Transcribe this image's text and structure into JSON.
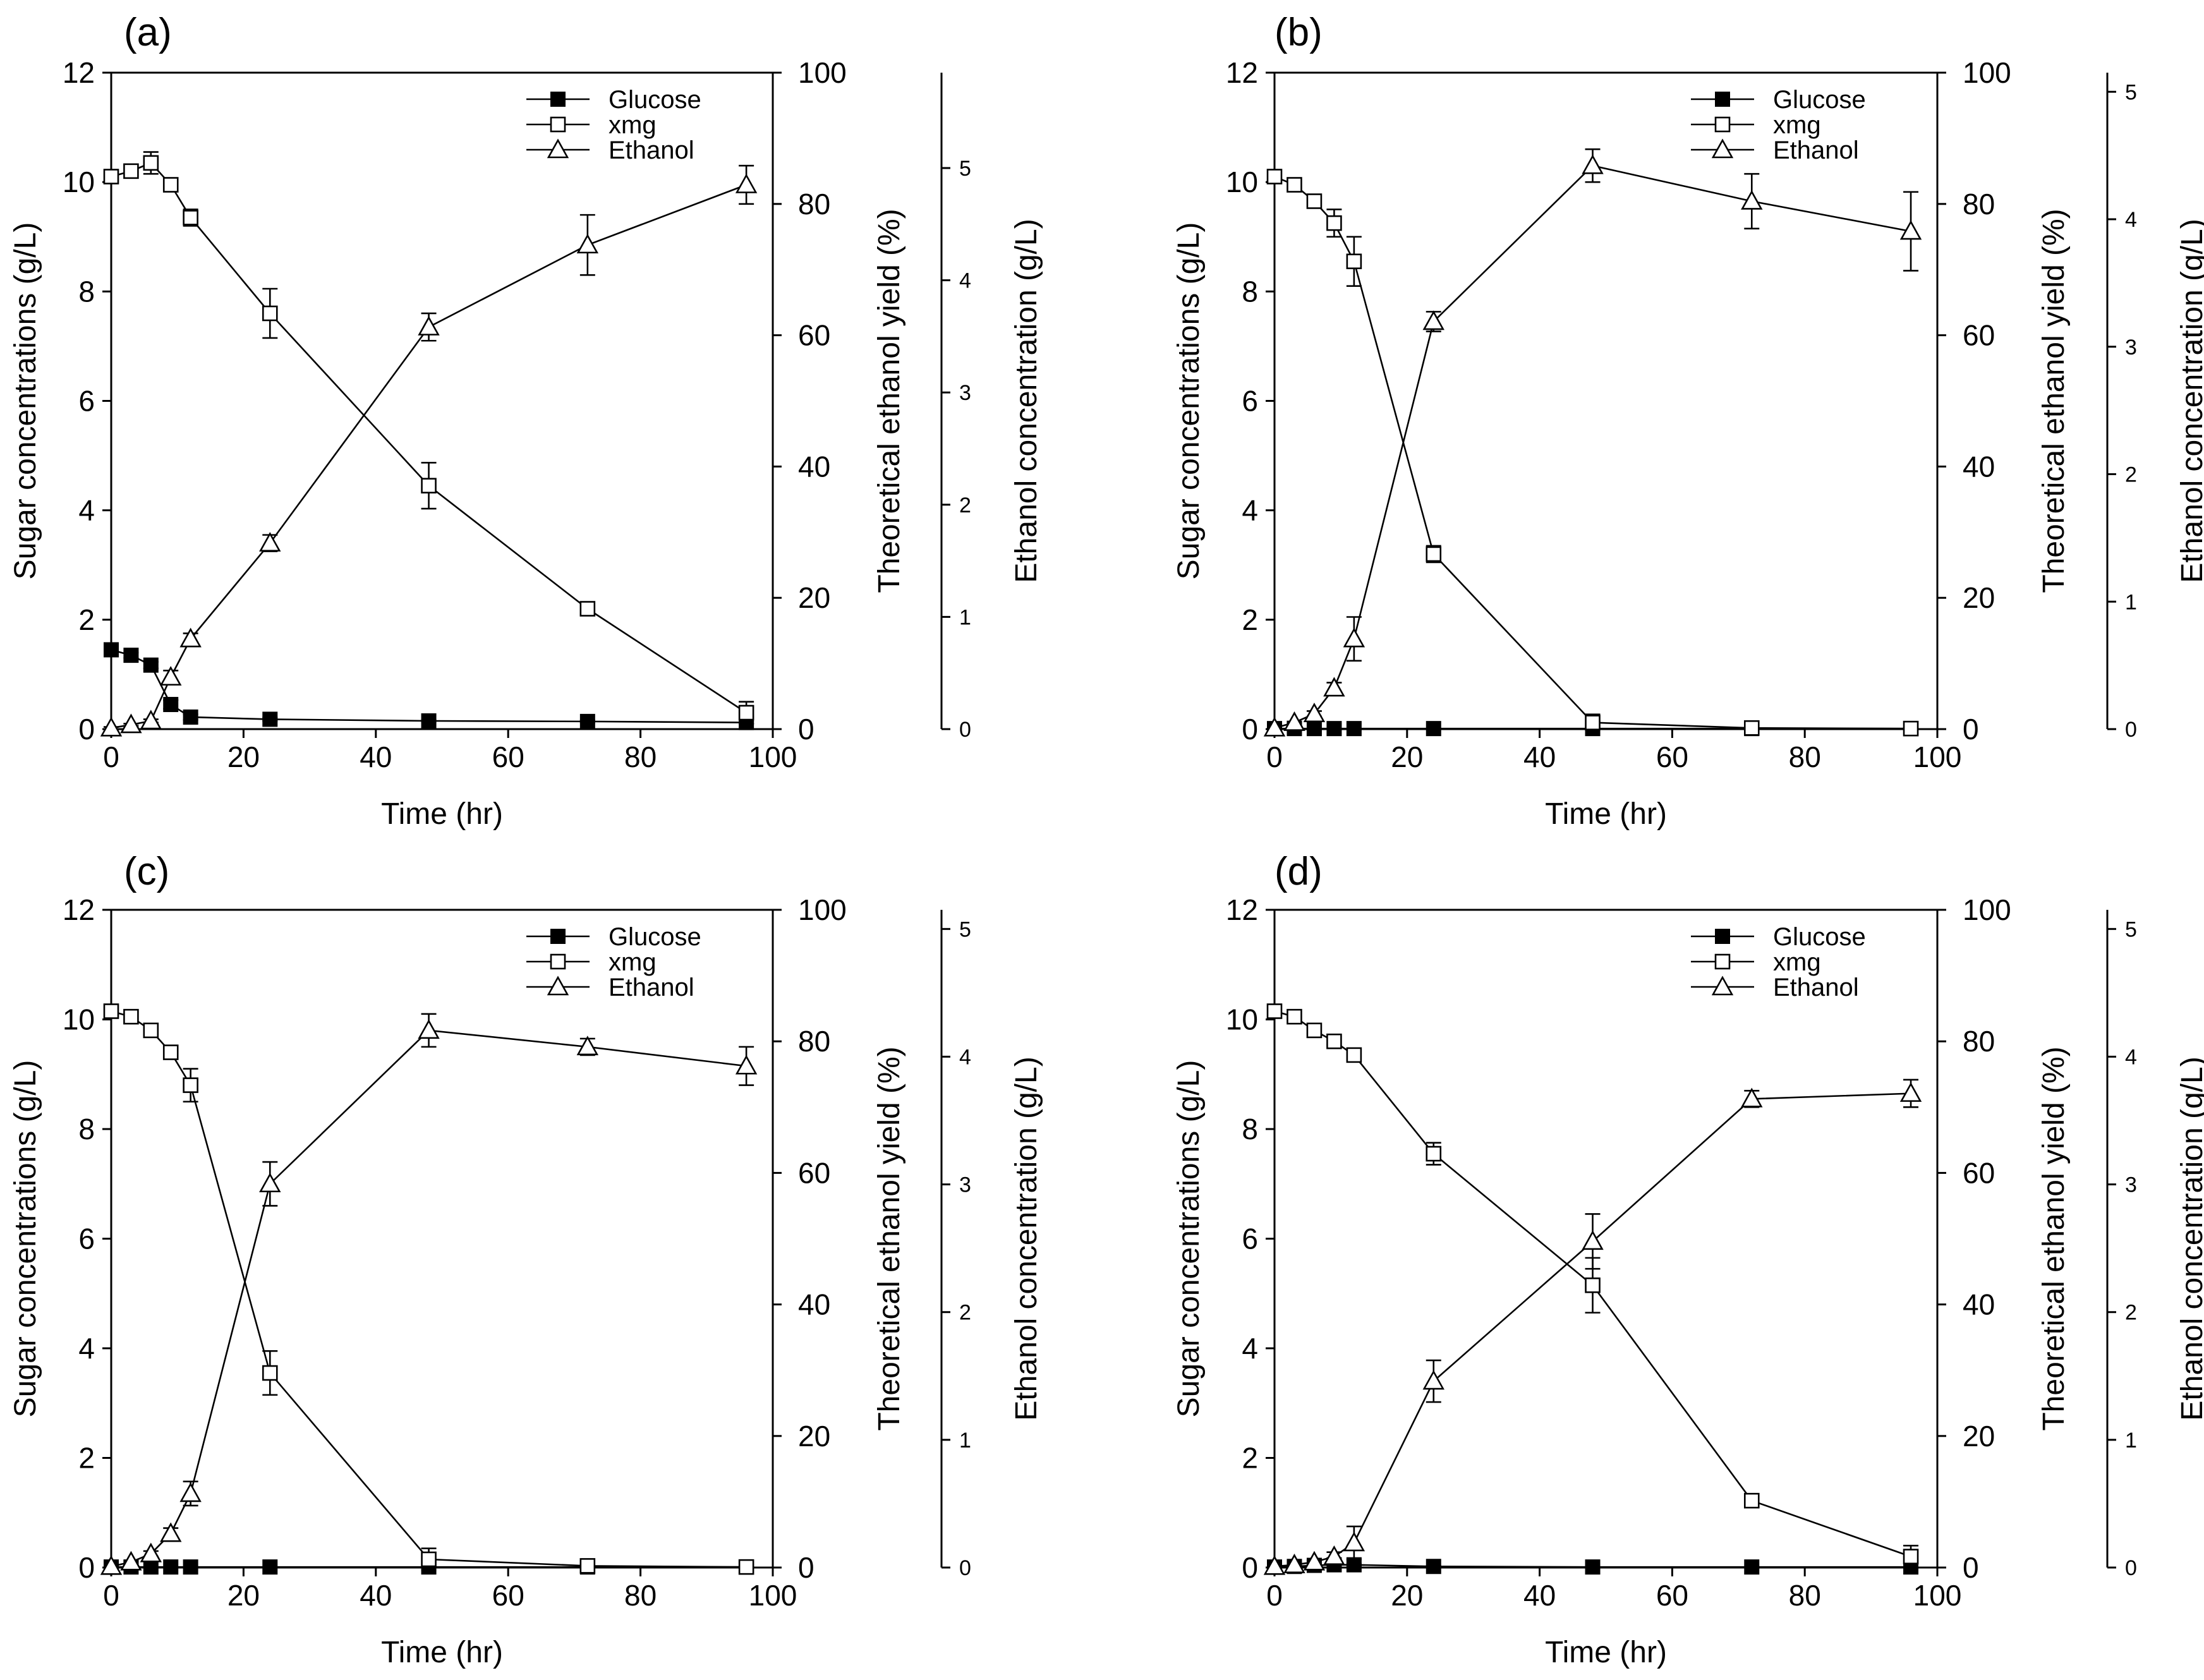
{
  "chart_data": [
    {
      "type": "line",
      "panel_label": "(a)",
      "xlabel": "Time (hr)",
      "ylabel": "Sugar concentrations (g/L)",
      "y2label": "Theoretical ethanol yield (%)",
      "y3label": "Ethanol concentration (g/L)",
      "xlim": [
        0,
        100
      ],
      "ylim": [
        0,
        12
      ],
      "y2lim": [
        0,
        100
      ],
      "y3lim": [
        0,
        5.85
      ],
      "xticks": [
        "0",
        "20",
        "40",
        "60",
        "80",
        "100"
      ],
      "yticks": [
        "0",
        "2",
        "4",
        "6",
        "8",
        "10",
        "12"
      ],
      "y2ticks": [
        "0",
        "20",
        "40",
        "60",
        "80",
        "100"
      ],
      "y3ticks": [
        "0",
        "1",
        "2",
        "3",
        "4",
        "5"
      ],
      "legend_position": "top-right",
      "series": [
        {
          "name": "Glucose",
          "marker": "filled-square",
          "x": [
            0,
            3,
            6,
            9,
            12,
            24,
            48,
            72,
            96
          ],
          "y": [
            1.45,
            1.35,
            1.17,
            0.45,
            0.22,
            0.18,
            0.15,
            0.14,
            0.12
          ],
          "err": [
            0.06,
            0.05,
            0.06,
            0.08,
            0.05,
            0.03,
            0.02,
            0.02,
            0.02
          ]
        },
        {
          "name": "xmg",
          "marker": "open-square",
          "x": [
            0,
            3,
            6,
            9,
            12,
            24,
            48,
            72,
            96
          ],
          "y": [
            10.1,
            10.2,
            10.35,
            9.95,
            9.35,
            7.6,
            4.45,
            2.2,
            0.3
          ],
          "err": [
            0.05,
            0.05,
            0.2,
            0.1,
            0.15,
            0.45,
            0.42,
            0.1,
            0.2
          ]
        },
        {
          "name": "Ethanol",
          "marker": "open-triangle",
          "x": [
            0,
            3,
            6,
            9,
            12,
            24,
            48,
            72,
            96
          ],
          "y": [
            0.02,
            0.08,
            0.15,
            0.95,
            1.65,
            3.4,
            7.35,
            8.85,
            9.95
          ],
          "err": [
            0.02,
            0.02,
            0.03,
            0.12,
            0.1,
            0.15,
            0.25,
            0.55,
            0.35
          ]
        }
      ]
    },
    {
      "type": "line",
      "panel_label": "(b)",
      "xlabel": "Time (hr)",
      "ylabel": "Sugar concentrations (g/L)",
      "y2label": "Theoretical ethanol yield (%)",
      "y3label": "Ethanol concentration (g/L)",
      "xlim": [
        0,
        100
      ],
      "ylim": [
        0,
        12
      ],
      "y2lim": [
        0,
        100
      ],
      "y3lim": [
        0,
        5.15
      ],
      "xticks": [
        "0",
        "20",
        "40",
        "60",
        "80",
        "100"
      ],
      "yticks": [
        "0",
        "2",
        "4",
        "6",
        "8",
        "10",
        "12"
      ],
      "y2ticks": [
        "0",
        "20",
        "40",
        "60",
        "80",
        "100"
      ],
      "y3ticks": [
        "0",
        "1",
        "2",
        "3",
        "4",
        "5"
      ],
      "legend_position": "top-right",
      "series": [
        {
          "name": "Glucose",
          "marker": "filled-square",
          "x": [
            0,
            3,
            6,
            9,
            12,
            24,
            48,
            72,
            96
          ],
          "y": [
            0.01,
            0.01,
            0.01,
            0.01,
            0.01,
            0.01,
            0.01,
            0.01,
            0.01
          ],
          "err": [
            0,
            0,
            0,
            0,
            0,
            0,
            0,
            0,
            0
          ]
        },
        {
          "name": "xmg",
          "marker": "open-square",
          "x": [
            0,
            3,
            6,
            9,
            12,
            24,
            48,
            72,
            96
          ],
          "y": [
            10.1,
            9.95,
            9.65,
            9.25,
            8.55,
            3.2,
            0.12,
            0.02,
            0.01
          ],
          "err": [
            0.05,
            0.05,
            0.1,
            0.25,
            0.45,
            0.15,
            0.15,
            0.03,
            0.01
          ]
        },
        {
          "name": "Ethanol",
          "marker": "open-triangle",
          "x": [
            0,
            3,
            6,
            9,
            12,
            24,
            48,
            72,
            96
          ],
          "y": [
            0.02,
            0.12,
            0.28,
            0.75,
            1.65,
            7.45,
            10.3,
            9.65,
            9.1
          ],
          "err": [
            0.02,
            0.02,
            0.05,
            0.1,
            0.4,
            0.18,
            0.3,
            0.5,
            0.72
          ]
        }
      ]
    },
    {
      "type": "line",
      "panel_label": "(c)",
      "xlabel": "Time (hr)",
      "ylabel": "Sugar concentrations (g/L)",
      "y2label": "Theoretical ethanol yield (%)",
      "y3label": "Ethanol concentration (g/L)",
      "xlim": [
        0,
        100
      ],
      "ylim": [
        0,
        12
      ],
      "y2lim": [
        0,
        100
      ],
      "y3lim": [
        0,
        5.15
      ],
      "xticks": [
        "0",
        "20",
        "40",
        "60",
        "80",
        "100"
      ],
      "yticks": [
        "0",
        "2",
        "4",
        "6",
        "8",
        "10",
        "12"
      ],
      "y2ticks": [
        "0",
        "20",
        "40",
        "60",
        "80",
        "100"
      ],
      "y3ticks": [
        "0",
        "1",
        "2",
        "3",
        "4",
        "5"
      ],
      "legend_position": "top-right",
      "series": [
        {
          "name": "Glucose",
          "marker": "filled-square",
          "x": [
            0,
            3,
            6,
            9,
            12,
            24,
            48,
            72,
            96
          ],
          "y": [
            0.01,
            0.01,
            0.01,
            0.01,
            0.01,
            0.01,
            0.01,
            0.01,
            0.01
          ],
          "err": [
            0,
            0,
            0,
            0,
            0,
            0,
            0,
            0,
            0
          ]
        },
        {
          "name": "xmg",
          "marker": "open-square",
          "x": [
            0,
            3,
            6,
            9,
            12,
            24,
            48,
            72,
            96
          ],
          "y": [
            10.15,
            10.05,
            9.8,
            9.4,
            8.8,
            3.55,
            0.15,
            0.03,
            0.01
          ],
          "err": [
            0.08,
            0.05,
            0.08,
            0.12,
            0.3,
            0.4,
            0.2,
            0.03,
            0.01
          ]
        },
        {
          "name": "Ethanol",
          "marker": "open-triangle",
          "x": [
            0,
            3,
            6,
            9,
            12,
            24,
            48,
            72,
            96
          ],
          "y": [
            0.02,
            0.1,
            0.25,
            0.62,
            1.35,
            7.0,
            9.8,
            9.5,
            9.15
          ],
          "err": [
            0.02,
            0.02,
            0.05,
            0.1,
            0.22,
            0.4,
            0.3,
            0.15,
            0.35
          ]
        }
      ]
    },
    {
      "type": "line",
      "panel_label": "(d)",
      "xlabel": "Time (hr)",
      "ylabel": "Sugar concentrations (g/L)",
      "y2label": "Theoretical ethanol yield (%)",
      "y3label": "Ethanol concentration (g/L)",
      "xlim": [
        0,
        100
      ],
      "ylim": [
        0,
        12
      ],
      "y2lim": [
        0,
        100
      ],
      "y3lim": [
        0,
        5.15
      ],
      "xticks": [
        "0",
        "20",
        "40",
        "60",
        "80",
        "100"
      ],
      "yticks": [
        "0",
        "2",
        "4",
        "6",
        "8",
        "10",
        "12"
      ],
      "y2ticks": [
        "0",
        "20",
        "40",
        "60",
        "80",
        "100"
      ],
      "y3ticks": [
        "0",
        "1",
        "2",
        "3",
        "4",
        "5"
      ],
      "legend_position": "top-right",
      "series": [
        {
          "name": "Glucose",
          "marker": "filled-square",
          "x": [
            0,
            3,
            6,
            9,
            12,
            24,
            48,
            72,
            96
          ],
          "y": [
            0.01,
            0.02,
            0.04,
            0.05,
            0.05,
            0.02,
            0.01,
            0.01,
            0.01
          ],
          "err": [
            0,
            0,
            0.01,
            0.01,
            0.02,
            0.01,
            0,
            0,
            0
          ]
        },
        {
          "name": "xmg",
          "marker": "open-square",
          "x": [
            0,
            3,
            6,
            9,
            12,
            24,
            48,
            72,
            96
          ],
          "y": [
            10.15,
            10.05,
            9.8,
            9.6,
            9.35,
            7.55,
            5.15,
            1.22,
            0.2
          ],
          "err": [
            0.05,
            0.05,
            0.06,
            0.06,
            0.1,
            0.2,
            0.5,
            0.08,
            0.2
          ]
        },
        {
          "name": "Ethanol",
          "marker": "open-triangle",
          "x": [
            0,
            3,
            6,
            9,
            12,
            24,
            48,
            72,
            96
          ],
          "y": [
            0.02,
            0.05,
            0.1,
            0.2,
            0.45,
            3.4,
            5.95,
            8.55,
            8.65
          ],
          "err": [
            0.02,
            0.02,
            0.03,
            0.08,
            0.3,
            0.38,
            0.5,
            0.15,
            0.25
          ]
        }
      ]
    }
  ]
}
